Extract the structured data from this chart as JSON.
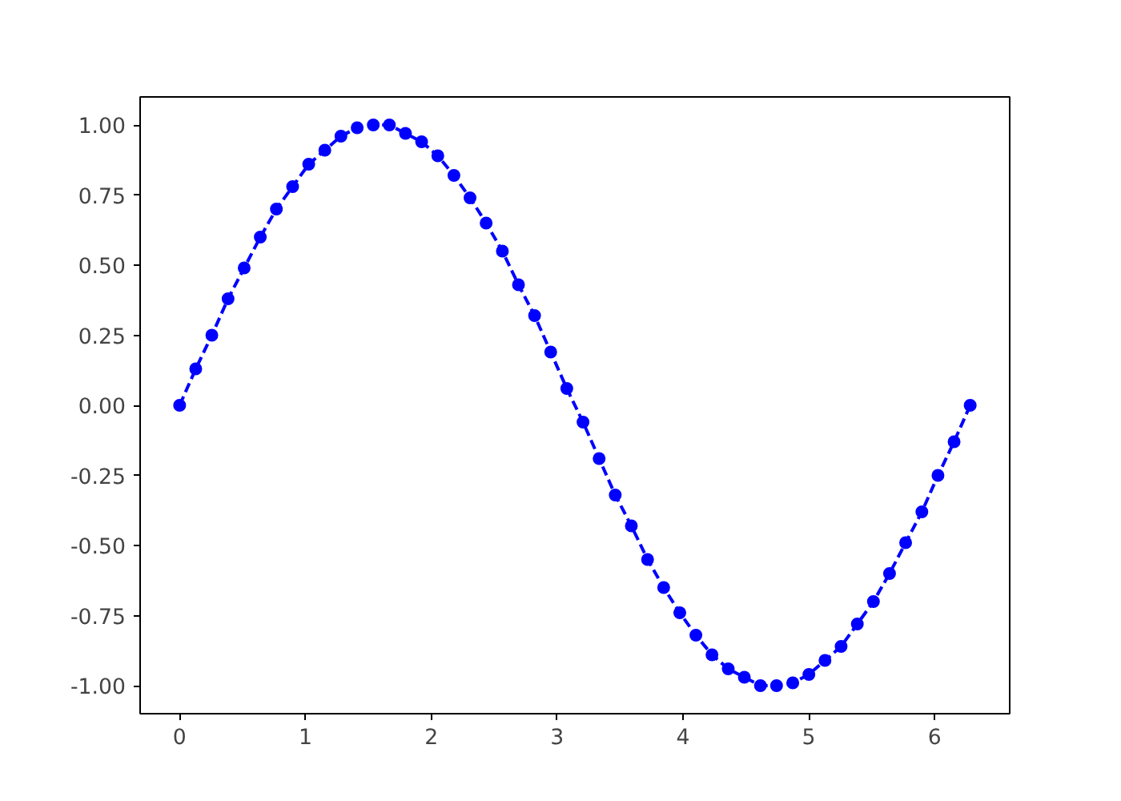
{
  "chart_data": {
    "type": "line",
    "x": [
      0.0,
      0.128,
      0.256,
      0.385,
      0.513,
      0.641,
      0.769,
      0.898,
      1.026,
      1.154,
      1.282,
      1.411,
      1.539,
      1.667,
      1.795,
      1.923,
      2.052,
      2.18,
      2.308,
      2.436,
      2.565,
      2.693,
      2.821,
      2.949,
      3.077,
      3.206,
      3.334,
      3.462,
      3.59,
      3.719,
      3.847,
      3.975,
      4.103,
      4.231,
      4.36,
      4.488,
      4.616,
      4.744,
      4.873,
      5.001,
      5.129,
      5.257,
      5.386,
      5.514,
      5.642,
      5.77,
      5.899,
      6.027,
      6.155,
      6.283
    ],
    "series": [
      {
        "color": "#0000ff",
        "values": [
          0.0,
          0.13,
          0.25,
          0.38,
          0.49,
          0.6,
          0.7,
          0.78,
          0.86,
          0.91,
          0.96,
          0.99,
          1.0,
          1.0,
          0.97,
          0.94,
          0.89,
          0.82,
          0.74,
          0.65,
          0.55,
          0.43,
          0.32,
          0.19,
          0.06,
          -0.06,
          -0.19,
          -0.32,
          -0.43,
          -0.55,
          -0.65,
          -0.74,
          -0.82,
          -0.89,
          -0.94,
          -0.97,
          -1.0,
          -1.0,
          -0.99,
          -0.96,
          -0.91,
          -0.86,
          -0.78,
          -0.7,
          -0.6,
          -0.49,
          -0.38,
          -0.25,
          -0.13,
          0.0
        ]
      }
    ],
    "xlim": [
      -0.314,
      6.597
    ],
    "ylim": [
      -1.1,
      1.1
    ],
    "xticks": [
      0,
      1,
      2,
      3,
      4,
      5,
      6
    ],
    "yticks": [
      {
        "value": -1,
        "label": "-1.00"
      },
      {
        "value": -0.75,
        "label": "-0.75"
      },
      {
        "value": -0.5,
        "label": "-0.50"
      },
      {
        "value": -0.25,
        "label": "-0.25"
      },
      {
        "value": 0,
        "label": "0.00"
      },
      {
        "value": 0.25,
        "label": "0.25"
      },
      {
        "value": 0.5,
        "label": "0.50"
      },
      {
        "value": 0.75,
        "label": "0.75"
      },
      {
        "value": 1,
        "label": "1.00"
      }
    ],
    "grid": false,
    "marker": "circle",
    "line_style": "dashed"
  }
}
